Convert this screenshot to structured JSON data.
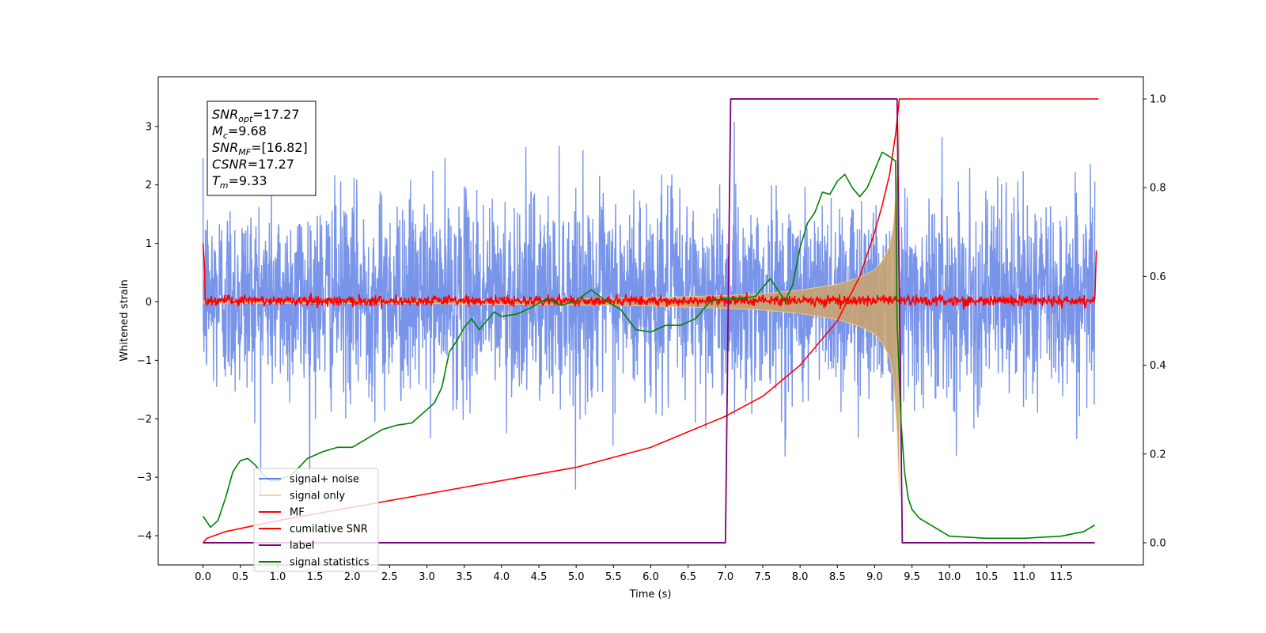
{
  "chart_data": {
    "type": "line",
    "xlabel": "Time (s)",
    "ylabel": "Whitened strain",
    "xlim": [
      -0.6,
      12.6
    ],
    "ylim": [
      -4.5,
      3.85
    ],
    "y2lim": [
      -0.05,
      1.05
    ],
    "x_ticks": [
      "0.0",
      "0.5",
      "1.0",
      "1.5",
      "2.0",
      "2.5",
      "3.0",
      "3.5",
      "4.0",
      "4.5",
      "5.0",
      "5.5",
      "6.0",
      "6.5",
      "7.0",
      "7.5",
      "8.0",
      "8.5",
      "9.0",
      "9.5",
      "10.0",
      "10.5",
      "11.0",
      "11.5"
    ],
    "y_ticks": [
      "3",
      "2",
      "1",
      "0",
      "−1",
      "−2",
      "−3",
      "−4"
    ],
    "y2_ticks": [
      "1.0",
      "0.8",
      "0.6",
      "0.4",
      "0.2",
      "0.0"
    ],
    "grid": false,
    "legend_position": "lower-left",
    "info_box": [
      {
        "main": "SNR",
        "sub": "opt",
        "value": "=17.27"
      },
      {
        "main": "M",
        "sub": "c",
        "value": "=9.68"
      },
      {
        "main": "SNR",
        "sub": "MF",
        "value": "=[16.82]"
      },
      {
        "main": "CSNR",
        "sub": "",
        "value": "=17.27"
      },
      {
        "main": "T",
        "sub": "m",
        "value": "=9.33"
      }
    ],
    "series": [
      {
        "name": "signal+ noise",
        "color": "#5b7ee5",
        "axis": "left",
        "kind": "noisy band around 0, amplitude ~±2 (peaks ~±3.5)"
      },
      {
        "name": "signal only",
        "color": "#ffd27f",
        "axis": "left",
        "kind": "chirp envelope",
        "envelope_x": [
          0.0,
          3.0,
          5.0,
          6.0,
          7.0,
          7.5,
          8.0,
          8.5,
          8.8,
          9.0,
          9.1,
          9.2,
          9.25,
          9.3,
          9.33
        ],
        "envelope_y": [
          0.02,
          0.03,
          0.05,
          0.07,
          0.11,
          0.14,
          0.2,
          0.3,
          0.42,
          0.55,
          0.7,
          0.95,
          1.3,
          2.2,
          3.3
        ]
      },
      {
        "name": "MF",
        "color": "#ff0000",
        "axis": "left",
        "kind": "noisy band around 0, amplitude ~±0.1"
      },
      {
        "name": "cumilative SNR",
        "color": "#ff0000",
        "axis": "right",
        "x": [
          0.0,
          0.05,
          0.3,
          1.0,
          2.0,
          3.0,
          4.0,
          5.0,
          6.0,
          7.0,
          7.5,
          8.0,
          8.5,
          8.8,
          9.0,
          9.1,
          9.2,
          9.28,
          9.33,
          12.0
        ],
        "y": [
          0.0,
          0.01,
          0.025,
          0.05,
          0.08,
          0.11,
          0.14,
          0.17,
          0.215,
          0.285,
          0.33,
          0.4,
          0.5,
          0.6,
          0.7,
          0.76,
          0.83,
          0.92,
          1.0,
          1.0
        ]
      },
      {
        "name": "label",
        "color": "#800080",
        "axis": "right",
        "x": [
          0.0,
          7.0,
          7.07,
          9.3,
          9.37,
          11.95
        ],
        "y": [
          0.0,
          0.0,
          1.0,
          1.0,
          0.0,
          0.0
        ]
      },
      {
        "name": "signal statistics",
        "color": "#008000",
        "axis": "right",
        "x": [
          0.0,
          0.1,
          0.2,
          0.3,
          0.4,
          0.5,
          0.6,
          0.7,
          0.8,
          0.9,
          1.0,
          1.2,
          1.4,
          1.6,
          1.8,
          2.0,
          2.2,
          2.4,
          2.6,
          2.8,
          3.0,
          3.1,
          3.2,
          3.3,
          3.4,
          3.5,
          3.6,
          3.7,
          3.8,
          3.9,
          4.0,
          4.2,
          4.4,
          4.6,
          4.8,
          5.0,
          5.2,
          5.4,
          5.6,
          5.8,
          6.0,
          6.2,
          6.4,
          6.6,
          6.8,
          7.0,
          7.2,
          7.4,
          7.6,
          7.8,
          7.9,
          8.0,
          8.1,
          8.2,
          8.3,
          8.4,
          8.5,
          8.6,
          8.7,
          8.8,
          8.9,
          9.0,
          9.1,
          9.2,
          9.28,
          9.3,
          9.35,
          9.4,
          9.45,
          9.5,
          9.6,
          9.8,
          10.0,
          10.5,
          11.0,
          11.5,
          11.8,
          11.95
        ],
        "y": [
          0.06,
          0.035,
          0.05,
          0.1,
          0.16,
          0.185,
          0.19,
          0.175,
          0.155,
          0.14,
          0.14,
          0.155,
          0.19,
          0.205,
          0.215,
          0.215,
          0.235,
          0.255,
          0.265,
          0.27,
          0.3,
          0.315,
          0.35,
          0.43,
          0.455,
          0.485,
          0.505,
          0.48,
          0.5,
          0.52,
          0.51,
          0.515,
          0.53,
          0.55,
          0.535,
          0.545,
          0.57,
          0.545,
          0.525,
          0.48,
          0.475,
          0.49,
          0.49,
          0.505,
          0.545,
          0.55,
          0.55,
          0.555,
          0.595,
          0.545,
          0.58,
          0.665,
          0.72,
          0.745,
          0.79,
          0.785,
          0.815,
          0.83,
          0.8,
          0.78,
          0.8,
          0.84,
          0.88,
          0.87,
          0.86,
          0.5,
          0.28,
          0.16,
          0.1,
          0.075,
          0.055,
          0.035,
          0.015,
          0.01,
          0.01,
          0.015,
          0.025,
          0.04
        ]
      }
    ]
  }
}
